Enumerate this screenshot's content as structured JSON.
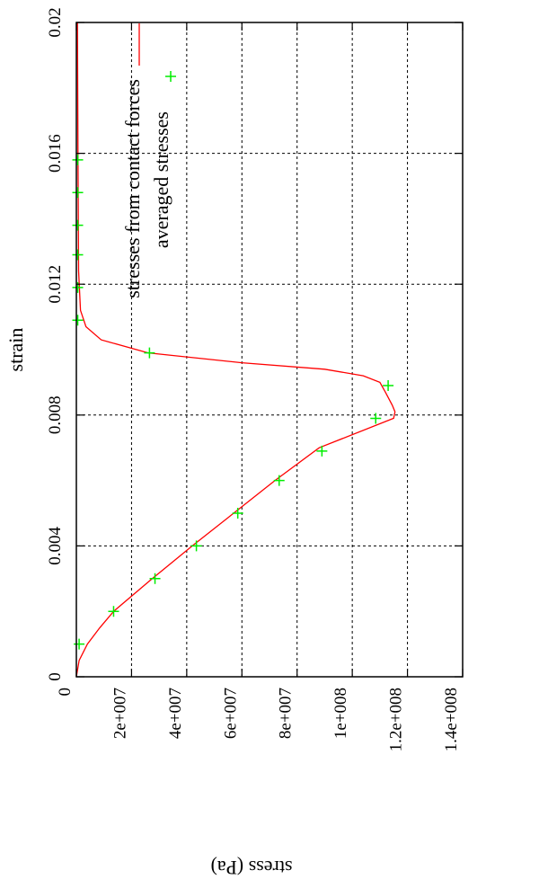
{
  "chart_data": {
    "type": "line",
    "xlabel": "strain",
    "ylabel": "stress (Pa)",
    "xlim": [
      0,
      0.02
    ],
    "ylim": [
      0,
      140000000
    ],
    "x_ticks": [
      {
        "value": 0,
        "label": "0"
      },
      {
        "value": 0.004,
        "label": "0.004"
      },
      {
        "value": 0.008,
        "label": "0.008"
      },
      {
        "value": 0.012,
        "label": "0.012"
      },
      {
        "value": 0.016,
        "label": "0.016"
      },
      {
        "value": 0.02,
        "label": "0.02"
      }
    ],
    "y_ticks": [
      {
        "value": 0,
        "label": "0"
      },
      {
        "value": 20000000,
        "label": "2e+007"
      },
      {
        "value": 40000000,
        "label": "4e+007"
      },
      {
        "value": 60000000,
        "label": "6e+007"
      },
      {
        "value": 80000000,
        "label": "8e+007"
      },
      {
        "value": 100000000,
        "label": "1e+008"
      },
      {
        "value": 120000000,
        "label": "1.2e+008"
      },
      {
        "value": 140000000,
        "label": "1.4e+008"
      }
    ],
    "grid": true,
    "legend_position": "top-right",
    "orientation": "rotated 180 degrees",
    "series": [
      {
        "name": "stresses from contact forces",
        "type": "line",
        "color": "#ff0000",
        "points": [
          [
            0,
            0
          ],
          [
            0.0005,
            1000000
          ],
          [
            0.001,
            4000000
          ],
          [
            0.0015,
            8500000
          ],
          [
            0.002,
            13500000
          ],
          [
            0.003,
            27500000
          ],
          [
            0.004,
            42000000
          ],
          [
            0.005,
            57000000
          ],
          [
            0.006,
            72000000
          ],
          [
            0.007,
            88000000
          ],
          [
            0.0079,
            115000000
          ],
          [
            0.0081,
            115500000
          ],
          [
            0.0083,
            114500000
          ],
          [
            0.0087,
            112000000
          ],
          [
            0.009,
            110000000
          ],
          [
            0.0092,
            104000000
          ],
          [
            0.0094,
            90000000
          ],
          [
            0.0096,
            60000000
          ],
          [
            0.0099,
            26000000
          ],
          [
            0.0103,
            9000000
          ],
          [
            0.0107,
            3500000
          ],
          [
            0.0112,
            1500000
          ],
          [
            0.0124,
            800000
          ],
          [
            0.016,
            600000
          ],
          [
            0.02,
            400000
          ]
        ]
      },
      {
        "name": "averaged stresses",
        "type": "scatter",
        "marker": "+",
        "color": "#00ee00",
        "points": [
          [
            0.001,
            1000000
          ],
          [
            0.002,
            13500000
          ],
          [
            0.003,
            28500000
          ],
          [
            0.004,
            43500000
          ],
          [
            0.005,
            58500000
          ],
          [
            0.006,
            73500000
          ],
          [
            0.0069,
            89000000
          ],
          [
            0.0079,
            108500000
          ],
          [
            0.0089,
            113000000
          ],
          [
            0.0099,
            26500000
          ],
          [
            0.0109,
            500000
          ],
          [
            0.0119,
            500000
          ],
          [
            0.0129,
            500000
          ],
          [
            0.0138,
            500000
          ],
          [
            0.0148,
            500000
          ],
          [
            0.0158,
            500000
          ]
        ]
      }
    ]
  }
}
